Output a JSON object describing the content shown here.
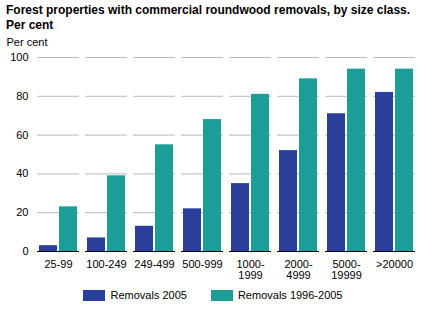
{
  "chart_data": {
    "type": "bar",
    "title": "Forest properties with commercial roundwood removals, by size class. Per cent",
    "y_label": "Per cent",
    "categories": [
      "25-99",
      "100-249",
      "249-499",
      "500-999",
      "1000-1999",
      "2000-4999",
      "5000-19999",
      ">20000"
    ],
    "series": [
      {
        "name": "Removals 2005",
        "color": "#2a3e9c",
        "values": [
          3,
          7,
          13,
          22,
          35,
          52,
          71,
          82
        ]
      },
      {
        "name": "Removals 1996-2005",
        "color": "#1b9e95",
        "values": [
          23,
          39,
          55,
          68,
          81,
          89,
          94,
          94
        ]
      }
    ],
    "ylim": [
      0,
      100
    ],
    "yticks": [
      0,
      20,
      40,
      60,
      80,
      100
    ],
    "grid": true,
    "legend": "bottom"
  }
}
